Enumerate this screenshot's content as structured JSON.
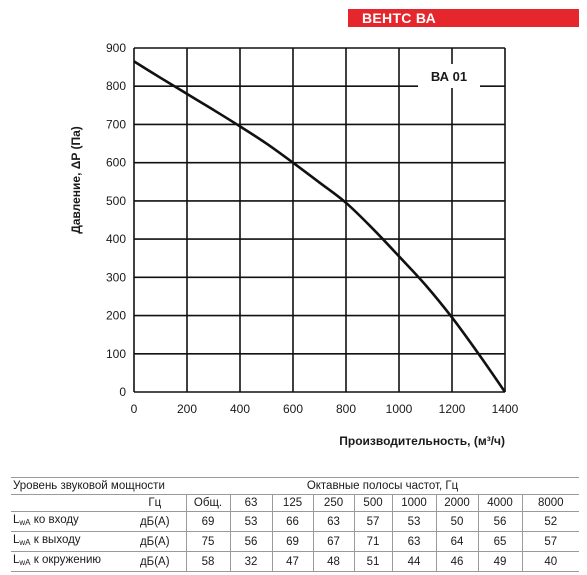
{
  "header": {
    "title": "ВЕНТС ВА"
  },
  "chart_data": {
    "type": "line",
    "model_label": "ВА 01",
    "ylabel": "Давление, ΔP (Па)",
    "xlabel": "Производительность, (м³/ч)",
    "xlim": [
      0,
      1400
    ],
    "ylim": [
      0,
      900
    ],
    "x_ticks": [
      "0",
      "200",
      "400",
      "600",
      "800",
      "1000",
      "1200",
      "1400"
    ],
    "y_ticks": [
      "0",
      "100",
      "200",
      "300",
      "400",
      "500",
      "600",
      "700",
      "800",
      "900"
    ],
    "grid": true,
    "series": [
      {
        "x": [
          0,
          100,
          200,
          300,
          400,
          500,
          600,
          700,
          800,
          900,
          1000,
          1100,
          1200,
          1300,
          1400
        ],
        "y": [
          865,
          822,
          780,
          738,
          695,
          650,
          600,
          548,
          495,
          428,
          355,
          280,
          195,
          100,
          0
        ]
      }
    ]
  },
  "sound_table": {
    "title": "Уровень звуковой мощности",
    "bands_title": "Октавные полосы частот, Гц",
    "freq_unit": "Гц",
    "columns": [
      "Общ.",
      "63",
      "125",
      "250",
      "500",
      "1000",
      "2000",
      "4000",
      "8000"
    ],
    "rows": [
      {
        "label_main": "L",
        "label_sub": "wA",
        "label_rest": " ко входу",
        "unit": "дБ(А)",
        "values": [
          "69",
          "53",
          "66",
          "63",
          "57",
          "53",
          "50",
          "56",
          "52"
        ]
      },
      {
        "label_main": "L",
        "label_sub": "wA",
        "label_rest": " к выходу",
        "unit": "дБ(А)",
        "values": [
          "75",
          "56",
          "69",
          "67",
          "71",
          "63",
          "64",
          "65",
          "57"
        ]
      },
      {
        "label_main": "L",
        "label_sub": "wA",
        "label_rest": " к окружению",
        "unit": "дБ(А)",
        "values": [
          "58",
          "32",
          "47",
          "48",
          "51",
          "44",
          "46",
          "49",
          "40"
        ]
      }
    ]
  }
}
